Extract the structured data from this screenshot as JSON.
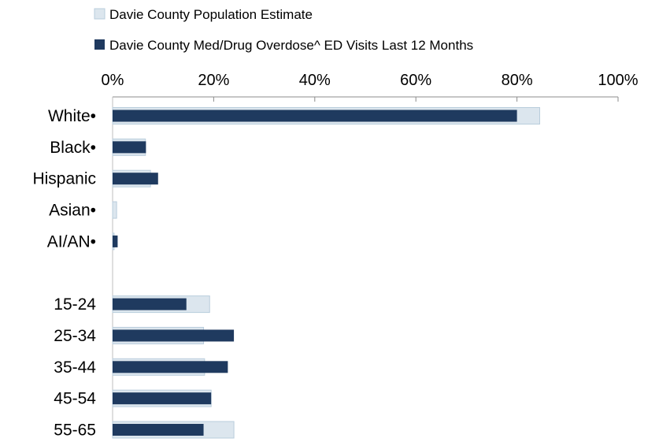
{
  "chart_data": {
    "type": "bar",
    "orientation": "horizontal",
    "categories": [
      "White•",
      "Black•",
      "Hispanic",
      "Asian•",
      "AI/AN•",
      "",
      "15-24",
      "25-34",
      "35-44",
      "45-54",
      "55-65"
    ],
    "series": [
      {
        "name": "Davie County Population Estimate",
        "color": "#dce6ee",
        "stroke": "#b9cddc",
        "values": [
          84.5,
          6.5,
          7.5,
          0.8,
          0.3,
          null,
          19.2,
          18.0,
          18.2,
          19.5,
          24.0
        ]
      },
      {
        "name": "Davie County Med/Drug Overdose^ ED Visits Last 12 Months",
        "color": "#1f3a5f",
        "values": [
          80.0,
          6.6,
          9.0,
          0.0,
          1.0,
          null,
          14.6,
          24.0,
          22.8,
          19.5,
          18.0
        ]
      }
    ],
    "x_ticks": [
      "0%",
      "20%",
      "40%",
      "60%",
      "80%",
      "100%"
    ],
    "xlim": [
      0,
      100
    ],
    "axis_position": "top",
    "legend_position": "top-left",
    "grid": false
  }
}
